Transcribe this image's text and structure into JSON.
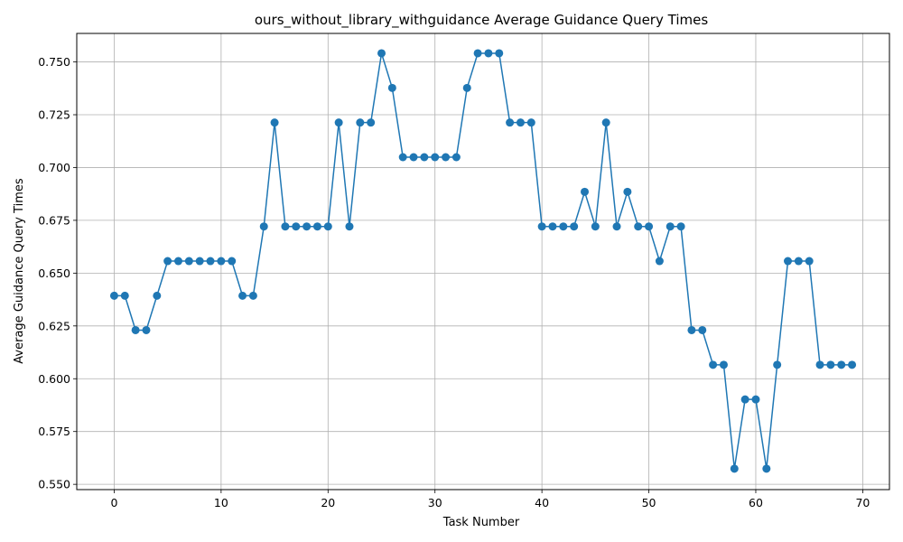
{
  "chart_data": {
    "type": "line",
    "title": "ours_without_library_withguidance Average Guidance Query Times",
    "xlabel": "Task Number",
    "ylabel": "Average Guidance Query Times",
    "xlim": [
      -3.5,
      72.5
    ],
    "ylim": [
      0.5475,
      0.7635
    ],
    "xticks": [
      0,
      10,
      20,
      30,
      40,
      50,
      60,
      70
    ],
    "xtick_labels": [
      "0",
      "10",
      "20",
      "30",
      "40",
      "50",
      "60",
      "70"
    ],
    "yticks": [
      0.55,
      0.575,
      0.6,
      0.625,
      0.65,
      0.675,
      0.7,
      0.725,
      0.75
    ],
    "ytick_labels": [
      "0.550",
      "0.575",
      "0.600",
      "0.625",
      "0.650",
      "0.675",
      "0.700",
      "0.725",
      "0.750"
    ],
    "grid": true,
    "color": "#1f77b4",
    "marker": "circle",
    "x": [
      0,
      1,
      2,
      3,
      4,
      5,
      6,
      7,
      8,
      9,
      10,
      11,
      12,
      13,
      14,
      15,
      16,
      17,
      18,
      19,
      20,
      21,
      22,
      23,
      24,
      25,
      26,
      27,
      28,
      29,
      30,
      31,
      32,
      33,
      34,
      35,
      36,
      37,
      38,
      39,
      40,
      41,
      42,
      43,
      44,
      45,
      46,
      47,
      48,
      49,
      50,
      51,
      52,
      53,
      54,
      55,
      56,
      57,
      58,
      59,
      60,
      61,
      62,
      63,
      64,
      65,
      66,
      67,
      68,
      69
    ],
    "y": [
      0.6393,
      0.6393,
      0.623,
      0.623,
      0.6393,
      0.6557,
      0.6557,
      0.6557,
      0.6557,
      0.6557,
      0.6557,
      0.6557,
      0.6393,
      0.6393,
      0.6721,
      0.7213,
      0.6721,
      0.6721,
      0.6721,
      0.6721,
      0.6721,
      0.7213,
      0.6721,
      0.7213,
      0.7213,
      0.7541,
      0.7377,
      0.7049,
      0.7049,
      0.7049,
      0.7049,
      0.7049,
      0.7049,
      0.7377,
      0.7541,
      0.7541,
      0.7541,
      0.7213,
      0.7213,
      0.7213,
      0.6721,
      0.6721,
      0.6721,
      0.6721,
      0.6885,
      0.6721,
      0.7213,
      0.6721,
      0.6885,
      0.6721,
      0.6721,
      0.6557,
      0.6721,
      0.6721,
      0.623,
      0.623,
      0.6066,
      0.6066,
      0.5574,
      0.5902,
      0.5902,
      0.5574,
      0.6066,
      0.6557,
      0.6557,
      0.6557,
      0.6066,
      0.6066,
      0.6066,
      0.6066
    ]
  }
}
